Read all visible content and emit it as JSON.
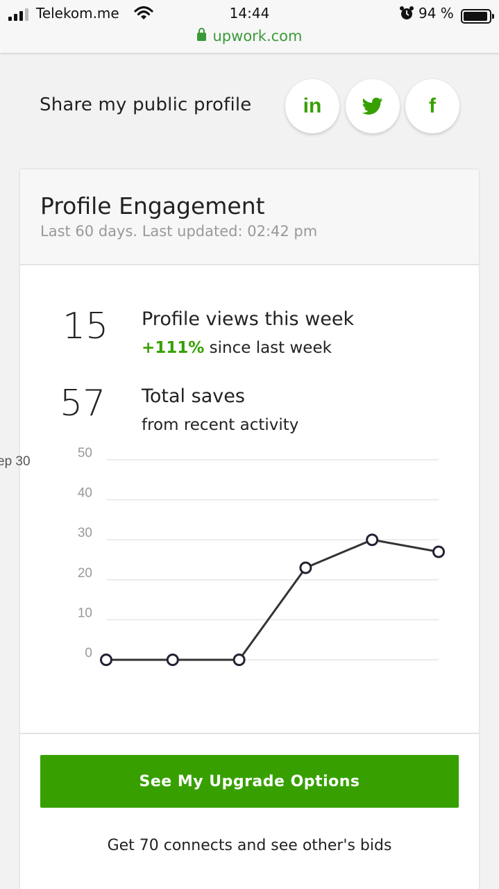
{
  "status_bar": {
    "carrier": "Telekom.me",
    "time": "14:44",
    "battery": "94 %"
  },
  "browser": {
    "url": "upwork.com"
  },
  "share": {
    "label": "Share my public profile",
    "buttons": [
      {
        "name": "linkedin",
        "glyph": "in"
      },
      {
        "name": "twitter",
        "icon": "twitter-bird-icon"
      },
      {
        "name": "facebook",
        "glyph": "f"
      }
    ]
  },
  "card": {
    "title": "Profile Engagement",
    "subtitle": "Last 60 days. Last updated: 02:42 pm",
    "stats": [
      {
        "value": "15",
        "line1": "Profile views this week",
        "delta": "+111%",
        "line2": " since last week"
      },
      {
        "value": "57",
        "line1": "Total saves",
        "line2": "from recent activity"
      }
    ],
    "overflow_label": "ep 30",
    "upgrade_button": "See My Upgrade Options",
    "connects_text": "Get 70 connects and see other's bids"
  },
  "chart_data": {
    "type": "line",
    "y_ticks": [
      "50",
      "40",
      "30",
      "20",
      "10",
      "0"
    ],
    "ylim": [
      0,
      50
    ],
    "grid": true,
    "series": [
      {
        "values": [
          0,
          0,
          0,
          23,
          30,
          27
        ]
      }
    ],
    "colors": {
      "line": "#333333",
      "point_fill": "#ffffff",
      "grid": "#e6e6e6"
    }
  },
  "theme": {
    "accent": "#37a000",
    "url_green": "#3a9a3a"
  }
}
